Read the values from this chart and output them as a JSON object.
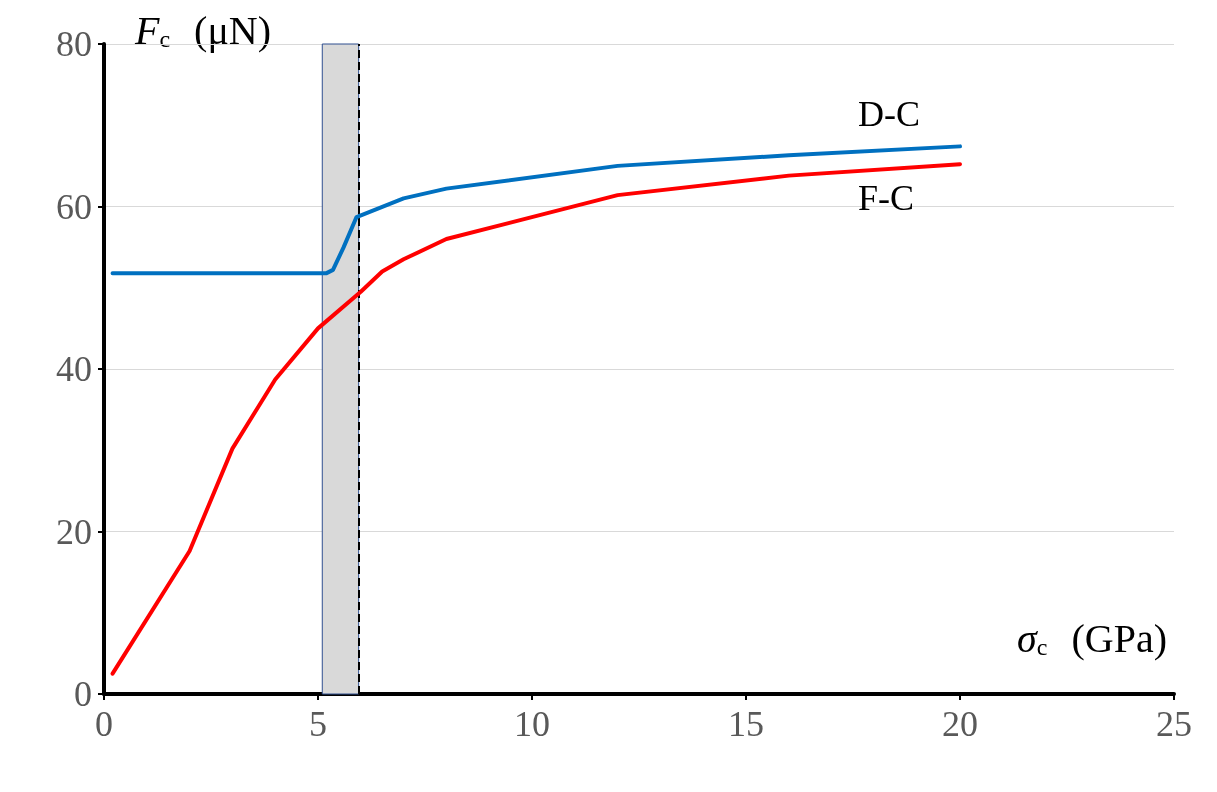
{
  "chart_data": {
    "type": "line",
    "xlabel": "σ$_{c}$ (GPa)",
    "ylabel": "F$_{c}$ (μN)",
    "xlim": [
      0,
      25
    ],
    "xticks": [
      0,
      5,
      10,
      15,
      20,
      25
    ],
    "ylim": [
      0,
      80
    ],
    "yticks": [
      0,
      20,
      40,
      60,
      80
    ],
    "grid": "y",
    "marker": "none",
    "line_style": "solid",
    "series": [
      {
        "name": "D-C",
        "color": "#0070c0",
        "x": [
          0.2,
          5.2,
          5.35,
          5.6,
          5.9,
          7,
          8,
          12,
          16,
          20
        ],
        "values": [
          51.8,
          51.8,
          52.2,
          55,
          58.7,
          61,
          62.2,
          65,
          66.3,
          67.4
        ]
      },
      {
        "name": "F-C",
        "color": "#ff0000",
        "x": [
          0.2,
          2,
          3,
          4,
          5,
          6,
          6.5,
          7,
          8,
          12,
          16,
          20
        ],
        "values": [
          2.5,
          17.6,
          30.2,
          38.7,
          45,
          49.5,
          52,
          53.5,
          56,
          61.4,
          63.8,
          65.2
        ]
      }
    ],
    "bands": [
      {
        "axis": "x",
        "from": 5.1,
        "to": 5.95,
        "color": "#d9d9d9"
      }
    ],
    "ref_lines": [
      {
        "axis": "x",
        "value": 5.95,
        "line_style": "dashed",
        "color": "#000000"
      }
    ]
  }
}
